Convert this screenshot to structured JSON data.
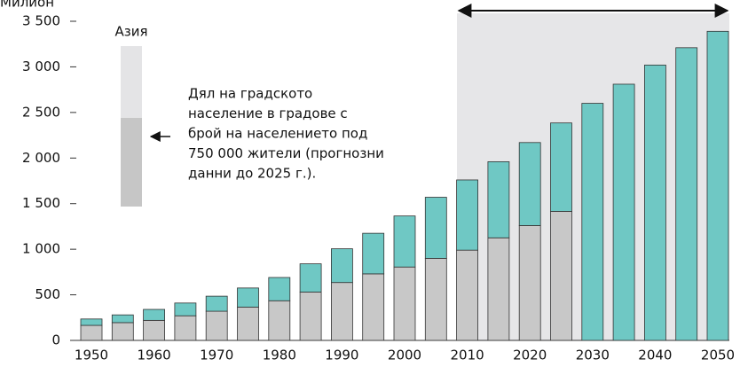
{
  "chart_data": {
    "type": "stacked_bar",
    "y_label": "Милион",
    "legend_title": "Азия",
    "annotation": [
      "Дял на градското",
      "население в градове с",
      "брой на населението под",
      "750 000 жители (прогнозни",
      "данни до 2025 г.)."
    ],
    "categories": [
      1950,
      null,
      1960,
      null,
      1970,
      null,
      1980,
      null,
      1990,
      null,
      2000,
      null,
      2010,
      null,
      2020,
      null,
      2030,
      null,
      2040,
      null,
      2050
    ],
    "series": [
      {
        "color": "#c8c8c8",
        "values": [
          165,
          195,
          220,
          270,
          320,
          365,
          435,
          530,
          635,
          730,
          805,
          900,
          990,
          1125,
          1260,
          1415,
          null,
          null,
          null,
          null,
          null
        ]
      },
      {
        "color": "#6fc8c4",
        "values": [
          70,
          85,
          120,
          140,
          165,
          210,
          255,
          310,
          370,
          445,
          560,
          670,
          770,
          835,
          910,
          970,
          2600,
          2810,
          3020,
          3210,
          3390
        ]
      }
    ],
    "ylim": [
      0,
      3500
    ],
    "yticks": [
      0,
      500,
      {
        "value": 1000,
        "label": "1 000"
      },
      {
        "value": 1500,
        "label": "1 500"
      },
      {
        "value": 2000,
        "label": "2 000"
      },
      {
        "value": 2500,
        "label": "2 500"
      },
      {
        "value": 3000,
        "label": "3 000"
      },
      {
        "value": 3500,
        "label": "3 500"
      }
    ]
  }
}
